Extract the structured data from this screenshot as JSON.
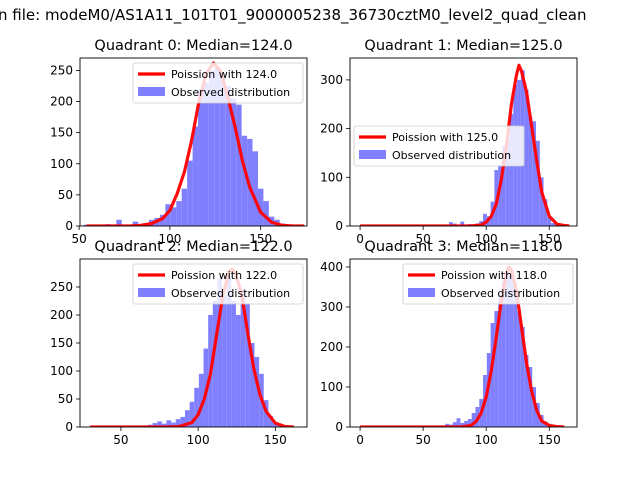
{
  "figure_title": "n file: modeM0/AS1A11_101T01_9000005238_36730cztM0_level2_quad_clean",
  "colors": {
    "poisson": "#ff0000",
    "observed": "#8080ff",
    "axis": "#000000"
  },
  "chart_data": [
    {
      "type": "bar",
      "title": "Quadrant 0: Median=124.0",
      "xlabel": "",
      "ylabel": "",
      "xlim": [
        50.5,
        175.5
      ],
      "ylim": [
        0,
        270
      ],
      "xticks": [
        50,
        100,
        150
      ],
      "yticks": [
        0,
        50,
        100,
        150,
        200,
        250
      ],
      "legend": {
        "placement": "top-right",
        "entries": [
          "Poission with 124.0",
          "Observed distribution"
        ]
      },
      "poisson_mean": 124.0,
      "hist_x": [
        54,
        57,
        60,
        63,
        66,
        69,
        72,
        75,
        78,
        81,
        84,
        87,
        90,
        93,
        96,
        99,
        102,
        105,
        108,
        111,
        114,
        117,
        120,
        123,
        126,
        129,
        132,
        135,
        138,
        141,
        144,
        147,
        150,
        153,
        156,
        159,
        162,
        165,
        168
      ],
      "hist_y": [
        2,
        0,
        0,
        2,
        3,
        2,
        10,
        0,
        0,
        7,
        0,
        3,
        10,
        13,
        18,
        35,
        30,
        40,
        60,
        105,
        160,
        220,
        230,
        250,
        255,
        240,
        225,
        205,
        195,
        145,
        140,
        120,
        60,
        40,
        15,
        10,
        4,
        2,
        1
      ],
      "poisson_x": [
        54,
        60,
        66,
        72,
        78,
        84,
        90,
        96,
        100,
        104,
        108,
        112,
        116,
        120,
        124,
        128,
        132,
        136,
        140,
        144,
        150,
        156,
        162,
        168,
        174
      ],
      "poisson_y": [
        0,
        0,
        0,
        0,
        0,
        1,
        4,
        12,
        25,
        52,
        87,
        138,
        200,
        245,
        262,
        248,
        206,
        158,
        104,
        62,
        22,
        6,
        1,
        0,
        0
      ]
    },
    {
      "type": "bar",
      "title": "Quadrant 1: Median=125.0",
      "xlabel": "",
      "ylabel": "",
      "xlim": [
        -8,
        172
      ],
      "ylim": [
        0,
        345
      ],
      "xticks": [
        0,
        50,
        100,
        150
      ],
      "yticks": [
        0,
        100,
        200,
        300
      ],
      "legend": {
        "placement": "center-right",
        "entries": [
          "Poission with 125.0",
          "Observed distribution"
        ]
      },
      "poisson_mean": 125.0,
      "hist_x": [
        72,
        75,
        78,
        81,
        84,
        87,
        90,
        93,
        96,
        99,
        102,
        105,
        108,
        111,
        114,
        117,
        120,
        123,
        126,
        129,
        132,
        135,
        138,
        141,
        144,
        147,
        150,
        153,
        156,
        159,
        162
      ],
      "hist_y": [
        8,
        5,
        3,
        9,
        3,
        4,
        2,
        5,
        10,
        25,
        20,
        50,
        115,
        125,
        165,
        175,
        230,
        290,
        300,
        320,
        280,
        225,
        215,
        175,
        100,
        55,
        18,
        6,
        3,
        2,
        1
      ],
      "poisson_x": [
        0,
        20,
        40,
        60,
        80,
        88,
        96,
        100,
        104,
        108,
        112,
        116,
        120,
        124,
        126,
        128,
        132,
        136,
        140,
        144,
        150,
        156,
        162,
        166
      ],
      "poisson_y": [
        0,
        0,
        0,
        0,
        0,
        0,
        2,
        8,
        20,
        45,
        95,
        165,
        250,
        310,
        330,
        318,
        275,
        205,
        135,
        70,
        20,
        4,
        1,
        0
      ],
      "poisson_peak_note": 330
    },
    {
      "type": "bar",
      "title": "Quadrant 2: Median=122.0",
      "xlabel": "",
      "ylabel": "",
      "xlim": [
        23.5,
        170.5
      ],
      "ylim": [
        0,
        300
      ],
      "xticks": [
        50,
        100,
        150
      ],
      "yticks": [
        0,
        50,
        100,
        150,
        200,
        250
      ],
      "legend": {
        "placement": "top-right",
        "entries": [
          "Poission with 122.0",
          "Observed distribution"
        ]
      },
      "poisson_mean": 122.0,
      "hist_x": [
        66,
        69,
        72,
        75,
        78,
        81,
        84,
        87,
        90,
        93,
        96,
        99,
        102,
        105,
        108,
        111,
        114,
        117,
        120,
        123,
        126,
        129,
        132,
        135,
        138,
        141,
        144,
        147,
        150,
        153
      ],
      "hist_y": [
        2,
        4,
        7,
        10,
        6,
        12,
        8,
        14,
        18,
        30,
        45,
        70,
        95,
        140,
        200,
        225,
        265,
        235,
        270,
        225,
        200,
        245,
        220,
        150,
        125,
        95,
        48,
        20,
        8,
        3
      ],
      "poisson_x": [
        30,
        50,
        70,
        80,
        88,
        96,
        100,
        104,
        108,
        112,
        116,
        120,
        122,
        124,
        128,
        132,
        136,
        140,
        144,
        150,
        156,
        162
      ],
      "poisson_y": [
        0,
        0,
        0,
        0,
        1,
        8,
        22,
        50,
        95,
        165,
        235,
        278,
        282,
        275,
        240,
        170,
        105,
        58,
        28,
        7,
        1,
        0
      ]
    },
    {
      "type": "bar",
      "title": "Quadrant 3: Median=118.0",
      "xlabel": "",
      "ylabel": "",
      "xlim": [
        -8,
        172
      ],
      "ylim": [
        0,
        420
      ],
      "xticks": [
        0,
        50,
        100,
        150
      ],
      "yticks": [
        0,
        100,
        200,
        300,
        400
      ],
      "legend": {
        "placement": "top-right",
        "entries": [
          "Poission with 118.0",
          "Observed distribution"
        ]
      },
      "poisson_mean": 118.0,
      "hist_x": [
        63,
        66,
        69,
        72,
        75,
        78,
        81,
        84,
        87,
        90,
        93,
        96,
        99,
        102,
        105,
        108,
        111,
        114,
        117,
        120,
        123,
        126,
        129,
        132,
        135,
        138,
        141,
        144,
        147,
        150
      ],
      "hist_y": [
        2,
        4,
        8,
        6,
        12,
        22,
        10,
        15,
        20,
        35,
        50,
        70,
        130,
        185,
        260,
        290,
        335,
        365,
        390,
        380,
        360,
        290,
        250,
        180,
        150,
        100,
        60,
        30,
        14,
        4
      ],
      "poisson_x": [
        0,
        20,
        40,
        60,
        80,
        88,
        92,
        96,
        100,
        104,
        108,
        112,
        116,
        118,
        120,
        124,
        128,
        132,
        136,
        140,
        144,
        150,
        156,
        162
      ],
      "poisson_y": [
        0,
        0,
        0,
        0,
        0,
        4,
        14,
        35,
        75,
        140,
        225,
        315,
        385,
        400,
        392,
        340,
        250,
        160,
        90,
        42,
        15,
        4,
        1,
        0
      ]
    }
  ]
}
